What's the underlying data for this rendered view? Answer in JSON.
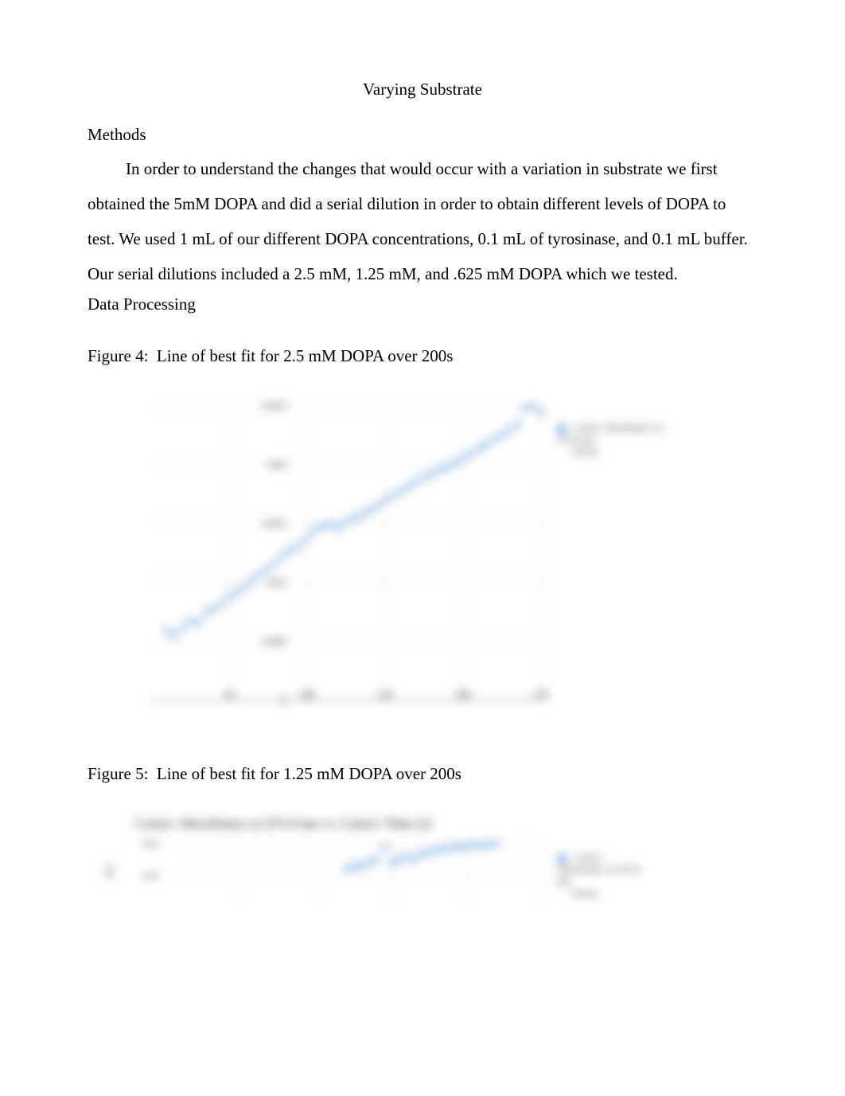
{
  "title": "Varying Substrate",
  "section_methods": "Methods",
  "methods_paragraph": "In order to understand the changes that would occur with a variation in substrate we first obtained the 5mM DOPA and did a serial dilution in order to obtain different levels of DOPA to test. We used 1 mL of our different DOPA concentrations, 0.1 mL of tyrosinase, and 0.1 mL buffer. Our serial dilutions included a 2.5 mM, 1.25 mM, and .625 mM DOPA which we tested.",
  "section_data": "Data Processing",
  "figure4_caption": "Figure 4:  Line of best fit for 2.5 mM DOPA over 200s",
  "figure5_caption": "Figure 5:  Line of best fit for 1.25 mM DOPA over 200s",
  "chart1": {
    "type": "scatter",
    "series_color": "#6fa8dc",
    "grid_color": "#b0b0b0",
    "background_color": "#ffffff",
    "legend_text": "Latest: Absorbance at 475.0 nm",
    "legend_line2": "Linear",
    "xlim": [
      0,
      250
    ],
    "ylim": [
      0,
      0.025
    ],
    "xticks": [
      50,
      100,
      150,
      200,
      250
    ],
    "yticks_labels": [
      "0",
      "0.005",
      "0.01",
      "0.015",
      "0.02",
      "0.025"
    ],
    "yticks_values": [
      0,
      0.005,
      0.01,
      0.015,
      0.02,
      0.025
    ],
    "data_x": [
      10,
      15,
      20,
      25,
      30,
      35,
      40,
      45,
      50,
      55,
      60,
      65,
      70,
      75,
      80,
      85,
      90,
      95,
      100,
      105,
      110,
      115,
      120,
      125,
      130,
      135,
      140,
      145,
      150,
      155,
      160,
      165,
      170,
      175,
      180,
      185,
      190,
      195,
      200,
      205,
      210,
      215,
      220,
      225,
      230,
      235,
      240,
      245,
      250
    ],
    "data_y": [
      0.006,
      0.0055,
      0.0062,
      0.0068,
      0.0066,
      0.0075,
      0.0078,
      0.0082,
      0.0088,
      0.0092,
      0.0096,
      0.0102,
      0.0108,
      0.0112,
      0.0118,
      0.0124,
      0.0128,
      0.0132,
      0.0138,
      0.0145,
      0.0148,
      0.015,
      0.0147,
      0.0152,
      0.0155,
      0.0158,
      0.0162,
      0.0165,
      0.017,
      0.0174,
      0.0178,
      0.0182,
      0.0186,
      0.019,
      0.0192,
      0.0196,
      0.0198,
      0.0202,
      0.0206,
      0.021,
      0.0214,
      0.0218,
      0.0222,
      0.0226,
      0.023,
      0.0235,
      0.0248,
      0.025,
      0.0245
    ]
  },
  "chart2": {
    "type": "scatter",
    "series_color": "#6fa8dc",
    "grid_color": "#b0b0b0",
    "title": "Latest: Absorbance at 475.0 nm vs. Latest: Time (s)",
    "legend_text": "Latest: Absorbance at 475.0 nm",
    "legend_line2": "Linear",
    "yaxis_title": "Abs",
    "xlim": [
      0,
      250
    ],
    "ylim": [
      0,
      0.02
    ],
    "yticks_labels": [
      "0.01",
      "0.02"
    ],
    "yticks_values": [
      0.01,
      0.02
    ],
    "data_x": [
      120,
      125,
      130,
      135,
      140,
      145,
      150,
      155,
      160,
      165,
      170,
      175,
      180,
      185,
      190,
      195,
      200,
      205,
      210,
      215,
      220
    ],
    "data_y": [
      0.012,
      0.013,
      0.013,
      0.014,
      0.015,
      0.019,
      0.014,
      0.015,
      0.016,
      0.015,
      0.017,
      0.017,
      0.018,
      0.018,
      0.019,
      0.019,
      0.019,
      0.02,
      0.019,
      0.02,
      0.02
    ]
  }
}
